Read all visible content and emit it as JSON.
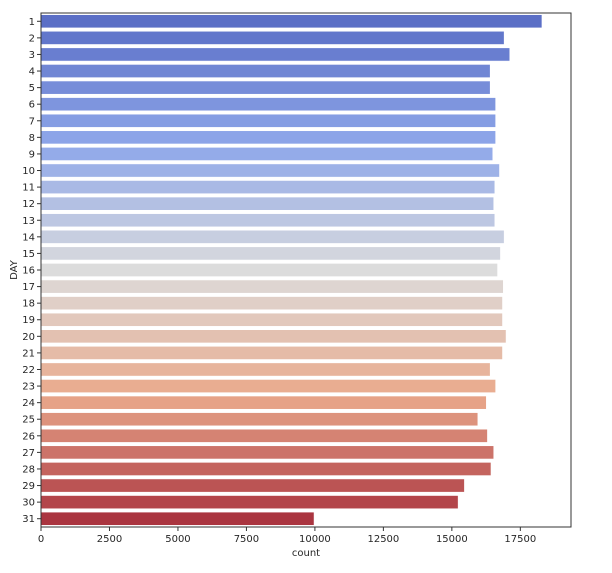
{
  "chart_data": {
    "type": "bar",
    "orientation": "horizontal",
    "xlabel": "count",
    "ylabel": "DAY",
    "categories": [
      "1",
      "2",
      "3",
      "4",
      "5",
      "6",
      "7",
      "8",
      "9",
      "10",
      "11",
      "12",
      "13",
      "14",
      "15",
      "16",
      "17",
      "18",
      "19",
      "20",
      "21",
      "22",
      "23",
      "24",
      "25",
      "26",
      "27",
      "28",
      "29",
      "30",
      "31"
    ],
    "values": [
      18290,
      16910,
      17115,
      16400,
      16400,
      16600,
      16600,
      16600,
      16495,
      16740,
      16570,
      16530,
      16570,
      16910,
      16775,
      16670,
      16880,
      16850,
      16850,
      16980,
      16850,
      16400,
      16600,
      16260,
      15950,
      16300,
      16530,
      16430,
      15460,
      15230,
      9970
    ],
    "xlim": [
      0,
      19350
    ],
    "xticks": [
      0,
      2500,
      5000,
      7500,
      10000,
      12500,
      15000,
      17500
    ],
    "grid": false,
    "palette": "coolwarm",
    "palette_stops": [
      "#5b6fc6",
      "#8fa8ea",
      "#dcdcdc",
      "#eaaa8c",
      "#aa3540"
    ]
  }
}
